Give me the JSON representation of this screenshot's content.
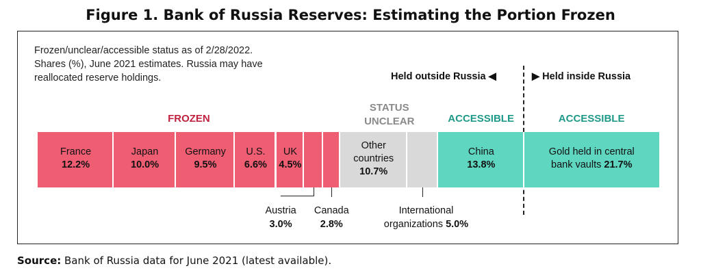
{
  "title": "Figure 1. Bank of Russia Reserves: Estimating the Portion Frozen",
  "notes": [
    "Frozen/unclear/accessible status as of 2/28/2022.",
    "Shares (%), June 2021 estimates. Russia may have",
    "reallocated reserve holdings."
  ],
  "held_outside": "Held outside Russia ◀",
  "held_inside": "▶ Held inside Russia",
  "source_label": "Source:",
  "source_text": " Bank of Russia data for June 2021 (latest available).",
  "colors": {
    "frozen": "#ef5d73",
    "unclear": "#d9d9d9",
    "accessible": "#5fd6c0",
    "frozen_text": "#c0213f",
    "unclear_text": "#8a8a8a",
    "accessible_text": "#1f9a88"
  },
  "chart_data": {
    "type": "bar",
    "orientation": "horizontal-stacked",
    "unit": "%",
    "groups": [
      {
        "label": "FROZEN",
        "status": "frozen"
      },
      {
        "label": "STATUS UNCLEAR",
        "lines": [
          "STATUS",
          "UNCLEAR"
        ],
        "status": "unclear"
      },
      {
        "label": "ACCESSIBLE",
        "status": "accessible",
        "held": "outside"
      },
      {
        "label": "ACCESSIBLE",
        "status": "accessible",
        "held": "inside"
      }
    ],
    "segments": [
      {
        "name": "France",
        "lines": [
          "France"
        ],
        "value": 12.2,
        "display": "12.2%",
        "status": "frozen"
      },
      {
        "name": "Japan",
        "lines": [
          "Japan"
        ],
        "value": 10.0,
        "display": "10.0%",
        "status": "frozen"
      },
      {
        "name": "Germany",
        "lines": [
          "Germany"
        ],
        "value": 9.5,
        "display": "9.5%",
        "status": "frozen"
      },
      {
        "name": "U.S.",
        "lines": [
          "U.S."
        ],
        "value": 6.6,
        "display": "6.6%",
        "status": "frozen"
      },
      {
        "name": "UK",
        "lines": [
          "UK"
        ],
        "value": 4.5,
        "display": "4.5%",
        "status": "frozen"
      },
      {
        "name": "Austria",
        "value": 3.0,
        "display": "3.0%",
        "status": "frozen",
        "callout": true
      },
      {
        "name": "Canada",
        "value": 2.8,
        "display": "2.8%",
        "status": "frozen",
        "callout": true
      },
      {
        "name": "Other countries",
        "lines": [
          "Other",
          "countries"
        ],
        "value": 10.7,
        "display": "10.7%",
        "status": "unclear"
      },
      {
        "name": "International organizations",
        "lines": [
          "International",
          "organizations"
        ],
        "value": 5.0,
        "display": "5.0%",
        "status": "unclear",
        "callout": true
      },
      {
        "name": "China",
        "lines": [
          "China"
        ],
        "value": 13.8,
        "display": "13.8%",
        "status": "accessible"
      },
      {
        "name": "Gold held in central bank vaults",
        "lines": [
          "Gold held in central",
          "bank vaults"
        ],
        "value": 21.7,
        "display": "21.7%",
        "status": "accessible"
      }
    ]
  }
}
